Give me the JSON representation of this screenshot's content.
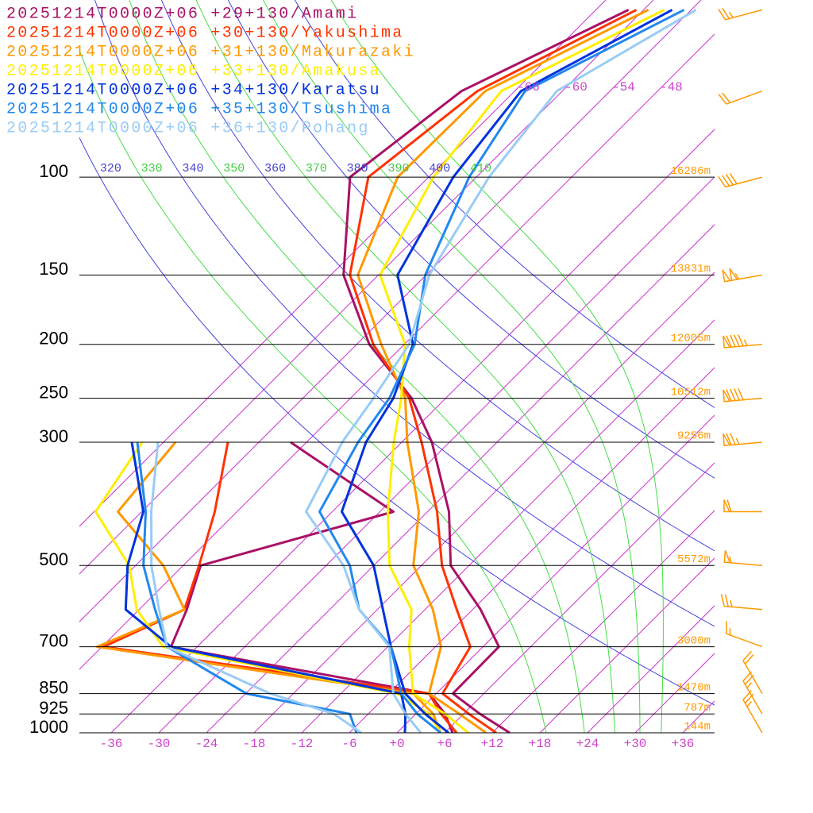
{
  "chart_data": {
    "type": "skewt",
    "log_scale": true,
    "xlim": [
      -40,
      40
    ],
    "ylim": [
      1000,
      48
    ],
    "yticks": [
      100,
      150,
      200,
      250,
      300,
      500,
      700,
      850,
      925,
      1000
    ],
    "heights": [
      "16286m",
      "13831m",
      "12005m",
      "10512m",
      "9256m",
      "5572m",
      "3000m",
      "1470m",
      "787m",
      "144m"
    ],
    "xticks": [
      -36,
      -30,
      -24,
      -18,
      -12,
      -6,
      {
        "value": 0,
        "label": "+0"
      },
      {
        "value": 6,
        "label": "+6"
      },
      {
        "value": 12,
        "label": "+12"
      },
      {
        "value": 18,
        "label": "+18"
      },
      {
        "value": 24,
        "label": "+24"
      },
      {
        "value": 30,
        "label": "+30"
      },
      {
        "value": 36,
        "label": "+36"
      }
    ],
    "top_isotherms": [
      -66,
      -60,
      -54,
      -48
    ],
    "dry_adiabats": [
      320,
      340,
      360,
      380,
      400
    ],
    "moist_adiabats": [
      330,
      350,
      370,
      390,
      410
    ],
    "levels": [
      1000,
      925,
      850,
      700,
      600,
      500,
      400,
      300,
      250,
      200,
      150,
      100,
      70,
      50
    ],
    "series": [
      {
        "name": "20251214T0000Z+06 +29+130/Amami",
        "color": "#aa1166",
        "temperature": [
          14.2,
          8.1,
          2.1,
          2.0,
          -5.0,
          -14.3,
          -21.3,
          -32.2,
          -40.3,
          -52.4,
          -64.4,
          -75.9,
          -72.7,
          -61.9
        ],
        "dewpoint": [
          7.0,
          3.7,
          -0.9,
          -39.3,
          -42.0,
          -45.8,
          -28.3,
          -50.0,
          null,
          null,
          null,
          null,
          null,
          null
        ]
      },
      {
        "name": "20251214T0000Z+06 +30+130/Yakushima",
        "color": "#ff3300",
        "temperature": [
          12.5,
          6.7,
          0.8,
          -1.6,
          -8.0,
          -15.4,
          -22.8,
          -33.5,
          -40.6,
          -51.9,
          -63.6,
          -73.6,
          -70.7,
          -60.9
        ],
        "dewpoint": [
          7.5,
          3.2,
          -0.9,
          -47.8,
          -42.3,
          -46.0,
          -50.8,
          -57.9,
          null,
          null,
          null,
          null,
          null,
          null
        ]
      },
      {
        "name": "20251214T0000Z+06 +31+130/Makurazaki",
        "color": "#ff9900",
        "temperature": [
          11.2,
          5.5,
          -0.9,
          -5.3,
          -11.0,
          -19.0,
          -25.1,
          -35.3,
          -41.1,
          -50.9,
          -62.6,
          -69.9,
          -69.7,
          -59.4
        ],
        "dewpoint": [
          5.5,
          2.2,
          -2.9,
          -48.6,
          -42.3,
          -50.5,
          -63.0,
          -64.5,
          null,
          null,
          null,
          null,
          null,
          null
        ]
      },
      {
        "name": "20251214T0000Z+06 +33+130/Amakusa",
        "color": "#ffee00",
        "temperature": [
          9.0,
          3.7,
          -2.9,
          -9.3,
          -13.7,
          -22.0,
          -29.0,
          -37.0,
          -41.6,
          -47.9,
          -59.8,
          -65.4,
          -67.7,
          -57.4
        ],
        "dewpoint": [
          5.5,
          1.7,
          -4.9,
          -40.3,
          -48.3,
          -54.8,
          -65.8,
          -68.7,
          null,
          null,
          null,
          null,
          null,
          null
        ]
      },
      {
        "name": "20251214T0000Z+06 +34+130/Karatsu",
        "color": "#0033dd",
        "temperature": [
          6.5,
          1.2,
          -3.9,
          -11.6,
          -17.3,
          -24.0,
          -34.8,
          -40.5,
          -42.6,
          -46.9,
          -57.6,
          -62.9,
          -65.2,
          -56.4
        ],
        "dewpoint": [
          1.0,
          -1.3,
          -4.4,
          -39.3,
          -49.7,
          -55.0,
          -59.8,
          -70.0,
          null,
          null,
          null,
          null,
          null,
          null
        ]
      },
      {
        "name": "20251214T0000Z+06 +35+130/Tsushima",
        "color": "#2288ee",
        "temperature": [
          5.5,
          0.2,
          -4.4,
          -11.6,
          -20.3,
          -27.0,
          -37.6,
          -41.5,
          -43.1,
          -46.7,
          -54.1,
          -60.9,
          -64.7,
          -54.9
        ],
        "dewpoint": [
          -5.1,
          -8.3,
          -23.9,
          -39.8,
          -46.0,
          -53.0,
          -59.5,
          -69.3,
          null,
          null,
          null,
          null,
          null,
          null
        ]
      },
      {
        "name": "20251214T0000Z+06 +36+130/Pohang",
        "color": "#99ccf5",
        "temperature": [
          3.0,
          -1.3,
          -5.4,
          -11.8,
          -20.3,
          -27.8,
          -39.3,
          -43.5,
          -45.1,
          -47.4,
          -53.6,
          -58.4,
          -60.7,
          -53.4
        ],
        "dewpoint": [
          -4.5,
          -10.3,
          -20.9,
          -39.8,
          -45.5,
          -52.0,
          -58.8,
          -66.7,
          null,
          null,
          null,
          null,
          null,
          null
        ]
      }
    ],
    "wind": {
      "color": "#ff9900",
      "pressure": [
        50,
        70,
        100,
        150,
        200,
        250,
        300,
        400,
        500,
        600,
        700,
        850,
        925,
        1000
      ],
      "direction": [
        255,
        250,
        255,
        260,
        265,
        265,
        265,
        270,
        275,
        275,
        290,
        330,
        330,
        330
      ],
      "speed": [
        25,
        20,
        40,
        105,
        95,
        90,
        75,
        60,
        55,
        25,
        15,
        20,
        25,
        25
      ]
    }
  }
}
